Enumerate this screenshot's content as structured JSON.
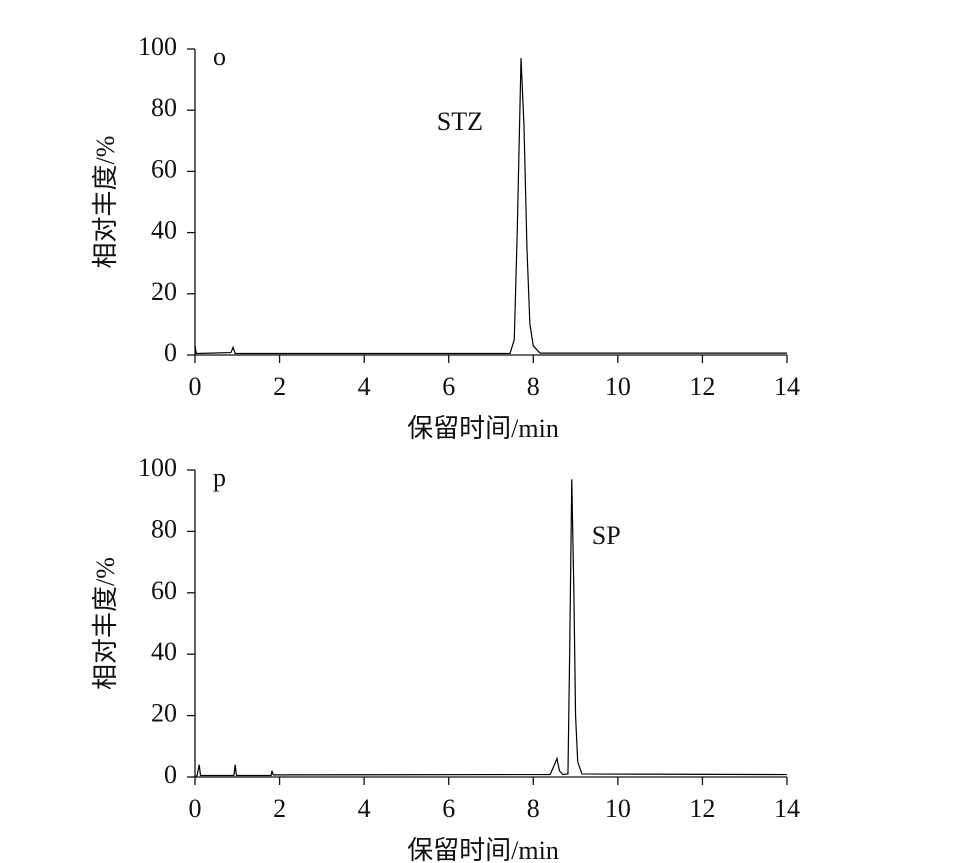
{
  "chart_data": [
    {
      "type": "line",
      "label": "o",
      "annotation": "STZ",
      "x_label": "保留时间/min",
      "y_label": "相对丰度/%",
      "x": [
        0,
        0.03,
        0.85,
        0.9,
        0.95,
        7.45,
        7.55,
        7.62,
        7.71,
        7.78,
        7.85,
        7.92,
        8.0,
        8.16,
        14
      ],
      "values": [
        3,
        0.5,
        0.8,
        2.5,
        0.5,
        0.5,
        5,
        40,
        97,
        75,
        35,
        10,
        3,
        0.6,
        0.6
      ],
      "color": "#000000",
      "xlim": [
        0,
        14
      ],
      "xticks": [
        0,
        2,
        4,
        6,
        8,
        10,
        12,
        14
      ],
      "ylim": [
        0,
        100
      ],
      "yticks": [
        0,
        20,
        40,
        60,
        80,
        100
      ]
    },
    {
      "type": "line",
      "label": "p",
      "annotation": "SP",
      "x_label": "保留时间/min",
      "y_label": "相对丰度/%",
      "x": [
        0,
        0.05,
        0.1,
        0.13,
        0.92,
        0.95,
        0.98,
        1.8,
        1.82,
        1.85,
        8.4,
        8.5,
        8.56,
        8.62,
        8.7,
        8.82,
        8.86,
        8.91,
        8.96,
        9.0,
        9.05,
        9.15,
        14
      ],
      "values": [
        0,
        0.5,
        4,
        0.5,
        0.5,
        4,
        0.5,
        0.5,
        2,
        0.7,
        0.8,
        4,
        6,
        2,
        0.8,
        1,
        40,
        97,
        60,
        20,
        5,
        1,
        0.8
      ],
      "color": "#000000",
      "xlim": [
        0,
        14
      ],
      "xticks": [
        0,
        2,
        4,
        6,
        8,
        10,
        12,
        14
      ],
      "ylim": [
        0,
        100
      ],
      "yticks": [
        0,
        20,
        40,
        60,
        80,
        100
      ]
    }
  ]
}
